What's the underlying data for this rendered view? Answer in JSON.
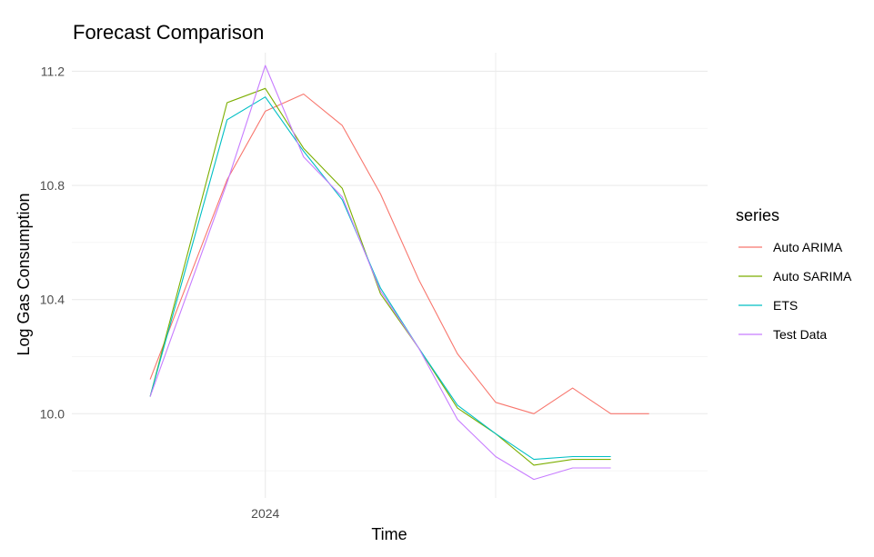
{
  "chart_data": {
    "type": "line",
    "title": "Forecast Comparison",
    "xlabel": "Time",
    "ylabel": "Log Gas Consumption",
    "xlim": [
      2023.58,
      2024.96
    ],
    "ylim": [
      9.705,
      11.265
    ],
    "x_major_ticks": [
      {
        "value": 2024.0,
        "label": "2024"
      }
    ],
    "x_minor_gridlines": [
      2024.5
    ],
    "y_major_ticks": [
      {
        "value": 10.0,
        "label": "10.0"
      },
      {
        "value": 10.4,
        "label": "10.4"
      },
      {
        "value": 10.8,
        "label": "10.8"
      },
      {
        "value": 11.2,
        "label": "11.2"
      }
    ],
    "y_minor_gridlines": [
      9.8,
      10.2,
      10.6,
      11.0
    ],
    "grid": true,
    "legend": {
      "title": "series",
      "position": "right"
    },
    "x": [
      2023.667,
      2023.75,
      2023.833,
      2023.917,
      2024.0,
      2024.083,
      2024.167,
      2024.25,
      2024.333,
      2024.417,
      2024.5,
      2024.583,
      2024.667,
      2024.75,
      2024.833,
      2024.917
    ],
    "series": [
      {
        "name": "Auto ARIMA",
        "color": "#F8766D",
        "x": [
          2023.75,
          2023.917,
          2024.0,
          2024.083,
          2024.167,
          2024.25,
          2024.333,
          2024.417,
          2024.5,
          2024.583,
          2024.667,
          2024.75,
          2024.833
        ],
        "values": [
          10.12,
          10.82,
          11.06,
          11.12,
          11.01,
          10.77,
          10.47,
          10.21,
          10.04,
          10.0,
          10.09,
          10.0,
          10.0
        ]
      },
      {
        "name": "Auto SARIMA",
        "color": "#7CAE00",
        "x": [
          2023.75,
          2023.917,
          2024.0,
          2024.083,
          2024.167,
          2024.25,
          2024.333,
          2024.417,
          2024.5,
          2024.583,
          2024.667,
          2024.75
        ],
        "values": [
          10.06,
          11.09,
          11.14,
          10.93,
          10.79,
          10.42,
          10.23,
          10.02,
          9.93,
          9.82,
          9.84,
          9.84
        ]
      },
      {
        "name": "ETS",
        "color": "#00BFC4",
        "x": [
          2023.75,
          2023.917,
          2024.0,
          2024.083,
          2024.167,
          2024.25,
          2024.333,
          2024.417,
          2024.5,
          2024.583,
          2024.667,
          2024.75
        ],
        "values": [
          10.06,
          11.03,
          11.11,
          10.92,
          10.75,
          10.44,
          10.23,
          10.03,
          9.93,
          9.84,
          9.85,
          9.85
        ]
      },
      {
        "name": "Test Data",
        "color": "#C77CFF",
        "x": [
          2023.75,
          2023.917,
          2024.0,
          2024.083,
          2024.167,
          2024.25,
          2024.333,
          2024.417,
          2024.5,
          2024.583,
          2024.667,
          2024.75
        ],
        "values": [
          10.06,
          10.81,
          11.22,
          10.9,
          10.76,
          10.43,
          10.23,
          9.98,
          9.85,
          9.77,
          9.81,
          9.81
        ]
      }
    ]
  }
}
